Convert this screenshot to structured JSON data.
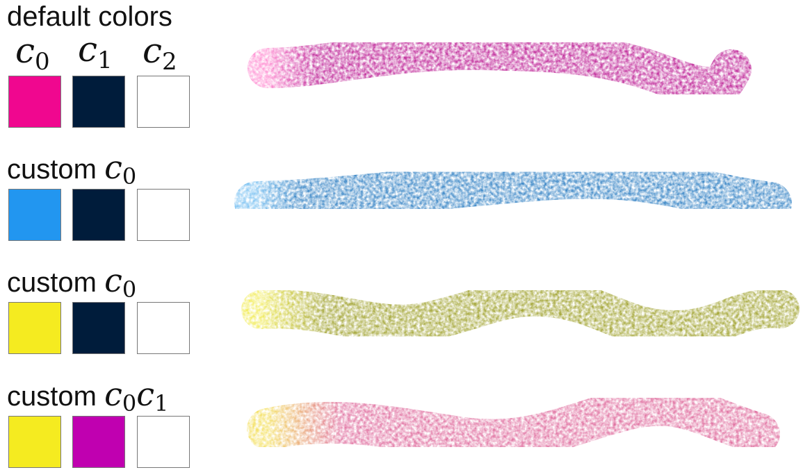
{
  "header": {
    "title": "default colors"
  },
  "columns": [
    {
      "symbol": "c",
      "subscript": "0"
    },
    {
      "symbol": "c",
      "subscript": "1"
    },
    {
      "symbol": "c",
      "subscript": "2"
    }
  ],
  "rows": [
    {
      "label": "",
      "math": [],
      "swatches": [
        "#f0078f",
        "#001c3b",
        "#ffffff"
      ],
      "stroke_color": "#c02a9a",
      "stroke_highlight": "#ff8ad0"
    },
    {
      "label": "custom",
      "math": [
        {
          "symbol": "c",
          "subscript": "0"
        }
      ],
      "swatches": [
        "#2296f0",
        "#001c3b",
        "#ffffff"
      ],
      "stroke_color": "#3a86c6",
      "stroke_highlight": "#7cc2f2"
    },
    {
      "label": "custom",
      "math": [
        {
          "symbol": "c",
          "subscript": "0"
        }
      ],
      "swatches": [
        "#f5eb20",
        "#001c3b",
        "#ffffff"
      ],
      "stroke_color": "#a3a535",
      "stroke_highlight": "#f2ec5a"
    },
    {
      "label": "custom",
      "math": [
        {
          "symbol": "c",
          "subscript": "0"
        },
        {
          "symbol": "c",
          "subscript": "1"
        }
      ],
      "swatches": [
        "#f5eb20",
        "#c000b0",
        "#ffffff"
      ],
      "stroke_color": "#e070a0",
      "stroke_highlight": "#f4e060"
    }
  ]
}
